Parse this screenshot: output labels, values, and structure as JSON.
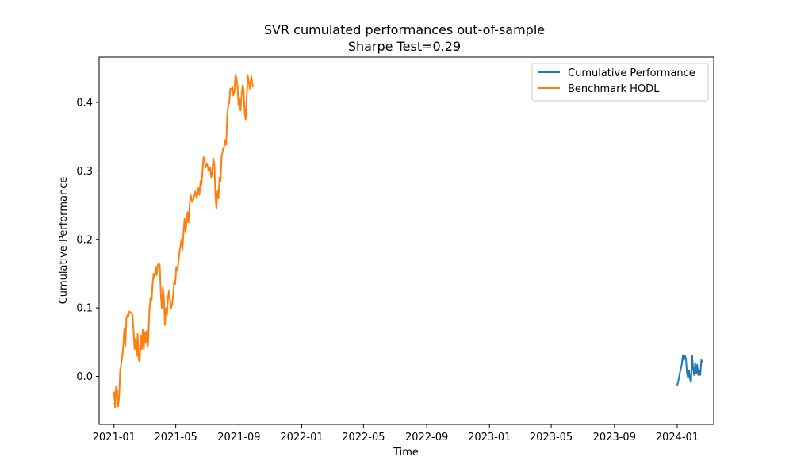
{
  "chart_data": {
    "type": "line",
    "title": "SVR cumulated performances out-of-sample",
    "subtitle": "Sharpe Test=0.29",
    "xlabel": "Time",
    "ylabel": "Cumulative Performance",
    "xlim": [
      "2020-12-03",
      "2024-03-12"
    ],
    "ylim": [
      -0.07,
      0.466
    ],
    "x_ticks": [
      "2021-01",
      "2021-05",
      "2021-09",
      "2022-01",
      "2022-05",
      "2022-09",
      "2023-01",
      "2023-05",
      "2023-09",
      "2024-01"
    ],
    "y_ticks": [
      0.0,
      0.1,
      0.2,
      0.3,
      0.4
    ],
    "y_tick_labels": [
      "0.0",
      "0.1",
      "0.2",
      "0.3",
      "0.4"
    ],
    "grid": false,
    "legend_position": "top-right",
    "series": [
      {
        "name": "Cumulative Performance",
        "color": "#1f77b4",
        "points": [
          [
            "2024-01-01",
            -0.013
          ],
          [
            "2024-01-04",
            -0.004
          ],
          [
            "2024-01-07",
            0.008
          ],
          [
            "2024-01-10",
            0.018
          ],
          [
            "2024-01-12",
            0.031
          ],
          [
            "2024-01-14",
            0.024
          ],
          [
            "2024-01-16",
            0.03
          ],
          [
            "2024-01-18",
            0.026
          ],
          [
            "2024-01-20",
            0.005
          ],
          [
            "2024-01-22",
            -0.002
          ],
          [
            "2024-01-24",
            0.009
          ],
          [
            "2024-01-26",
            -0.004
          ],
          [
            "2024-01-28",
            -0.008
          ],
          [
            "2024-01-30",
            0.031
          ],
          [
            "2024-02-01",
            0.012
          ],
          [
            "2024-02-03",
            0.002
          ],
          [
            "2024-02-05",
            0.02
          ],
          [
            "2024-02-07",
            0.004
          ],
          [
            "2024-02-09",
            0.017
          ],
          [
            "2024-02-11",
            0.002
          ],
          [
            "2024-02-13",
            0.009
          ],
          [
            "2024-02-15",
            0.002
          ],
          [
            "2024-02-17",
            0.024
          ],
          [
            "2024-02-19",
            0.021
          ]
        ]
      },
      {
        "name": "Benchmark HODL",
        "color": "#ff7f0e",
        "points": [
          [
            "2021-01-01",
            -0.022
          ],
          [
            "2021-01-03",
            -0.045
          ],
          [
            "2021-01-05",
            -0.015
          ],
          [
            "2021-01-07",
            -0.02
          ],
          [
            "2021-01-09",
            -0.044
          ],
          [
            "2021-01-11",
            -0.028
          ],
          [
            "2021-01-13",
            0.01
          ],
          [
            "2021-01-15",
            0.018
          ],
          [
            "2021-01-17",
            0.03
          ],
          [
            "2021-01-19",
            0.045
          ],
          [
            "2021-01-21",
            0.07
          ],
          [
            "2021-01-23",
            0.045
          ],
          [
            "2021-01-25",
            0.085
          ],
          [
            "2021-01-27",
            0.09
          ],
          [
            "2021-01-29",
            0.088
          ],
          [
            "2021-01-31",
            0.095
          ],
          [
            "2021-02-03",
            0.093
          ],
          [
            "2021-02-06",
            0.09
          ],
          [
            "2021-02-08",
            0.065
          ],
          [
            "2021-02-10",
            0.04
          ],
          [
            "2021-02-12",
            0.055
          ],
          [
            "2021-02-14",
            0.03
          ],
          [
            "2021-02-16",
            0.062
          ],
          [
            "2021-02-18",
            0.025
          ],
          [
            "2021-02-20",
            0.022
          ],
          [
            "2021-02-22",
            0.06
          ],
          [
            "2021-02-24",
            0.04
          ],
          [
            "2021-02-26",
            0.068
          ],
          [
            "2021-02-28",
            0.04
          ],
          [
            "2021-03-02",
            0.065
          ],
          [
            "2021-03-04",
            0.05
          ],
          [
            "2021-03-06",
            0.067
          ],
          [
            "2021-03-08",
            0.045
          ],
          [
            "2021-03-11",
            0.1
          ],
          [
            "2021-03-13",
            0.115
          ],
          [
            "2021-03-15",
            0.11
          ],
          [
            "2021-03-17",
            0.135
          ],
          [
            "2021-03-19",
            0.15
          ],
          [
            "2021-03-21",
            0.145
          ],
          [
            "2021-03-23",
            0.16
          ],
          [
            "2021-03-25",
            0.148
          ],
          [
            "2021-03-27",
            0.162
          ],
          [
            "2021-03-29",
            0.165
          ],
          [
            "2021-03-31",
            0.162
          ],
          [
            "2021-04-02",
            0.12
          ],
          [
            "2021-04-04",
            0.1
          ],
          [
            "2021-04-06",
            0.13
          ],
          [
            "2021-04-08",
            0.115
          ],
          [
            "2021-04-10",
            0.075
          ],
          [
            "2021-04-12",
            0.1
          ],
          [
            "2021-04-14",
            0.09
          ],
          [
            "2021-04-16",
            0.115
          ],
          [
            "2021-04-18",
            0.125
          ],
          [
            "2021-04-20",
            0.11
          ],
          [
            "2021-04-22",
            0.1
          ],
          [
            "2021-04-24",
            0.105
          ],
          [
            "2021-04-26",
            0.12
          ],
          [
            "2021-04-28",
            0.14
          ],
          [
            "2021-04-30",
            0.135
          ],
          [
            "2021-05-02",
            0.16
          ],
          [
            "2021-05-04",
            0.155
          ],
          [
            "2021-05-06",
            0.165
          ],
          [
            "2021-05-08",
            0.18
          ],
          [
            "2021-05-10",
            0.19
          ],
          [
            "2021-05-12",
            0.2
          ],
          [
            "2021-05-14",
            0.185
          ],
          [
            "2021-05-16",
            0.21
          ],
          [
            "2021-05-18",
            0.23
          ],
          [
            "2021-05-20",
            0.21
          ],
          [
            "2021-05-22",
            0.225
          ],
          [
            "2021-05-24",
            0.24
          ],
          [
            "2021-05-26",
            0.225
          ],
          [
            "2021-05-28",
            0.25
          ],
          [
            "2021-05-30",
            0.265
          ],
          [
            "2021-06-02",
            0.255
          ],
          [
            "2021-06-05",
            0.26
          ],
          [
            "2021-06-08",
            0.27
          ],
          [
            "2021-06-11",
            0.26
          ],
          [
            "2021-06-14",
            0.275
          ],
          [
            "2021-06-16",
            0.265
          ],
          [
            "2021-06-18",
            0.285
          ],
          [
            "2021-06-20",
            0.28
          ],
          [
            "2021-06-22",
            0.3
          ],
          [
            "2021-06-24",
            0.32
          ],
          [
            "2021-06-26",
            0.318
          ],
          [
            "2021-06-28",
            0.305
          ],
          [
            "2021-07-01",
            0.31
          ],
          [
            "2021-07-04",
            0.3
          ],
          [
            "2021-07-07",
            0.305
          ],
          [
            "2021-07-09",
            0.29
          ],
          [
            "2021-07-11",
            0.3
          ],
          [
            "2021-07-13",
            0.318
          ],
          [
            "2021-07-15",
            0.31
          ],
          [
            "2021-07-17",
            0.265
          ],
          [
            "2021-07-19",
            0.245
          ],
          [
            "2021-07-21",
            0.27
          ],
          [
            "2021-07-23",
            0.26
          ],
          [
            "2021-07-25",
            0.29
          ],
          [
            "2021-07-27",
            0.285
          ],
          [
            "2021-07-29",
            0.32
          ],
          [
            "2021-08-01",
            0.332
          ],
          [
            "2021-08-03",
            0.335
          ],
          [
            "2021-08-05",
            0.345
          ],
          [
            "2021-08-07",
            0.338
          ],
          [
            "2021-08-09",
            0.38
          ],
          [
            "2021-08-11",
            0.395
          ],
          [
            "2021-08-13",
            0.4
          ],
          [
            "2021-08-15",
            0.42
          ],
          [
            "2021-08-17",
            0.418
          ],
          [
            "2021-08-19",
            0.422
          ],
          [
            "2021-08-21",
            0.41
          ],
          [
            "2021-08-23",
            0.415
          ],
          [
            "2021-08-25",
            0.44
          ],
          [
            "2021-08-27",
            0.435
          ],
          [
            "2021-08-29",
            0.425
          ],
          [
            "2021-08-31",
            0.395
          ],
          [
            "2021-09-02",
            0.405
          ],
          [
            "2021-09-04",
            0.388
          ],
          [
            "2021-09-06",
            0.41
          ],
          [
            "2021-09-08",
            0.425
          ],
          [
            "2021-09-10",
            0.42
          ],
          [
            "2021-09-12",
            0.385
          ],
          [
            "2021-09-14",
            0.375
          ],
          [
            "2021-09-16",
            0.405
          ],
          [
            "2021-09-18",
            0.44
          ],
          [
            "2021-09-20",
            0.43
          ],
          [
            "2021-09-22",
            0.42
          ],
          [
            "2021-09-25",
            0.438
          ],
          [
            "2021-09-28",
            0.422
          ]
        ]
      }
    ]
  }
}
